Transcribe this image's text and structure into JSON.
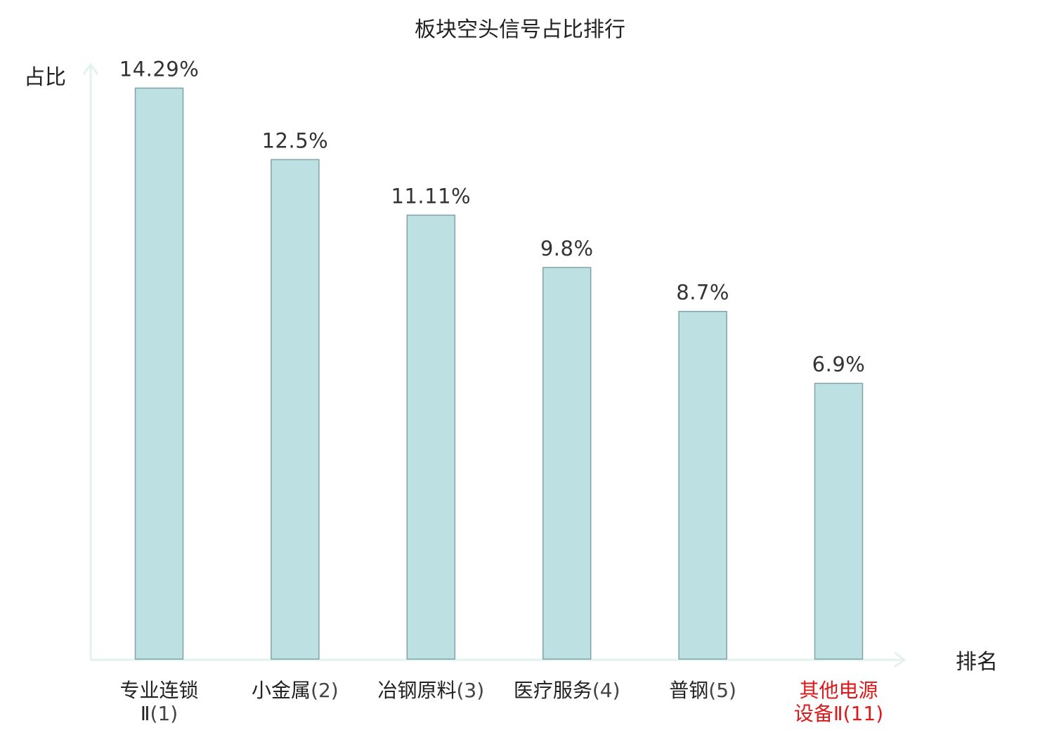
{
  "chart_data": {
    "type": "bar",
    "title": "板块空头信号占比排行",
    "ylabel": "占比",
    "xlabel": "排名",
    "ylim": [
      0,
      15.3
    ],
    "grid": false,
    "legend": "none",
    "value_suffix": "%",
    "categories": [
      {
        "name_lines": [
          "专业连锁",
          "Ⅱ"
        ],
        "rank": "(1)",
        "highlight": false
      },
      {
        "name_lines": [
          "小金属"
        ],
        "rank": "(2)",
        "highlight": false
      },
      {
        "name_lines": [
          "冶钢原料"
        ],
        "rank": "(3)",
        "highlight": false
      },
      {
        "name_lines": [
          "医疗服务"
        ],
        "rank": "(4)",
        "highlight": false
      },
      {
        "name_lines": [
          "普钢"
        ],
        "rank": "(5)",
        "highlight": false
      },
      {
        "name_lines": [
          "其他电源",
          "设备Ⅱ"
        ],
        "rank": "(11)",
        "highlight": true
      }
    ],
    "values": [
      14.29,
      12.5,
      11.11,
      9.8,
      8.7,
      6.9
    ],
    "value_labels": [
      "14.29%",
      "12.5%",
      "11.11%",
      "9.8%",
      "8.7%",
      "6.9%"
    ]
  },
  "colors": {
    "bar_fill": "#bde0e3",
    "bar_stroke": "#7fa3a6",
    "axis": "#e2f2ef",
    "highlight_text": "#dd1a1a",
    "text": "#222222"
  }
}
